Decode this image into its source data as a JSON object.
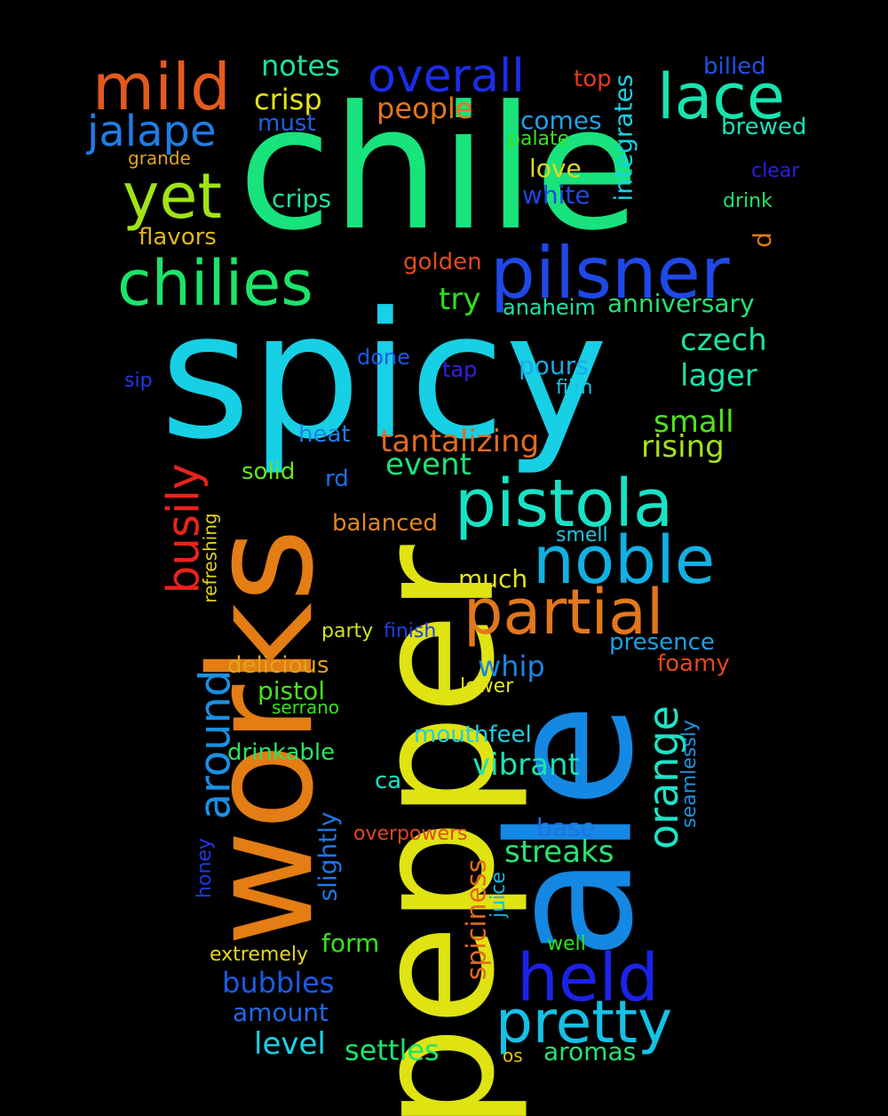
{
  "words": [
    {
      "key": "chile",
      "text": "chile",
      "color": "#18e37d"
    },
    {
      "key": "spicy",
      "text": "spicy",
      "color": "#17d0e5"
    },
    {
      "key": "pepper",
      "text": "pepper",
      "color": "#dfe311"
    },
    {
      "key": "ale",
      "text": "ale",
      "color": "#1488e3"
    },
    {
      "key": "works",
      "text": "works",
      "color": "#e37d14"
    },
    {
      "key": "pilsner",
      "text": "pilsner",
      "color": "#1f48e6"
    },
    {
      "key": "chilies",
      "text": "chilies",
      "color": "#1ce46a"
    },
    {
      "key": "pistola",
      "text": "pistola",
      "color": "#19e2c4"
    },
    {
      "key": "noble",
      "text": "noble",
      "color": "#12b0e3"
    },
    {
      "key": "partial",
      "text": "partial",
      "color": "#e3771c"
    },
    {
      "key": "held",
      "text": "held",
      "color": "#1c22e8"
    },
    {
      "key": "pretty",
      "text": "pretty",
      "color": "#15c1e6"
    },
    {
      "key": "mild",
      "text": "mild",
      "color": "#e35a1c"
    },
    {
      "key": "lace",
      "text": "lace",
      "color": "#19e3b0"
    },
    {
      "key": "yet",
      "text": "yet",
      "color": "#a1e314"
    },
    {
      "key": "overall",
      "text": "overall",
      "color": "#1c2ce8"
    },
    {
      "key": "jalape",
      "text": "jalape",
      "color": "#1f7ee6"
    },
    {
      "key": "busily",
      "text": "busily",
      "color": "#e8231c"
    },
    {
      "key": "around",
      "text": "around",
      "color": "#1a90e3"
    },
    {
      "key": "orange",
      "text": "orange",
      "color": "#1ee3c6"
    },
    {
      "key": "notes",
      "text": "notes",
      "color": "#1be39a"
    },
    {
      "key": "crisp",
      "text": "crisp",
      "color": "#e3e314"
    },
    {
      "key": "people",
      "text": "people",
      "color": "#e3771c"
    },
    {
      "key": "must",
      "text": "must",
      "color": "#2160e6"
    },
    {
      "key": "top",
      "text": "top",
      "color": "#e83a1c"
    },
    {
      "key": "billed",
      "text": "billed",
      "color": "#1f52e6"
    },
    {
      "key": "comes",
      "text": "comes",
      "color": "#1ea4e6"
    },
    {
      "key": "palate",
      "text": "palate",
      "color": "#38e31c"
    },
    {
      "key": "brewed",
      "text": "brewed",
      "color": "#16e3bc"
    },
    {
      "key": "integrates",
      "text": "integrates",
      "color": "#17d3e6"
    },
    {
      "key": "clear",
      "text": "clear",
      "color": "#2a1ce8"
    },
    {
      "key": "grande",
      "text": "grande",
      "color": "#e3a51c"
    },
    {
      "key": "love",
      "text": "love",
      "color": "#e3d81c"
    },
    {
      "key": "white",
      "text": "white",
      "color": "#1f46e6"
    },
    {
      "key": "drink",
      "text": "drink",
      "color": "#21e36a"
    },
    {
      "key": "crips",
      "text": "crips",
      "color": "#1ce3a0"
    },
    {
      "key": "flavors",
      "text": "flavors",
      "color": "#e3b61c"
    },
    {
      "key": "d",
      "text": "d",
      "color": "#e3771c"
    },
    {
      "key": "golden",
      "text": "golden",
      "color": "#e34a1c"
    },
    {
      "key": "try",
      "text": "try",
      "color": "#2ce31c"
    },
    {
      "key": "anaheim",
      "text": "anaheim",
      "color": "#19e3a8"
    },
    {
      "key": "anniversary",
      "text": "anniversary",
      "color": "#28e372"
    },
    {
      "key": "czech",
      "text": "czech",
      "color": "#19e3a2"
    },
    {
      "key": "done",
      "text": "done",
      "color": "#1c5ae8"
    },
    {
      "key": "tap",
      "text": "tap",
      "color": "#3a1ce8"
    },
    {
      "key": "pours",
      "text": "pours",
      "color": "#1ea8e6"
    },
    {
      "key": "lager",
      "text": "lager",
      "color": "#19e3ae"
    },
    {
      "key": "sip",
      "text": "sip",
      "color": "#1c3ae8"
    },
    {
      "key": "film",
      "text": "film",
      "color": "#18c6e3"
    },
    {
      "key": "heat",
      "text": "heat",
      "color": "#1f82e6"
    },
    {
      "key": "small",
      "text": "small",
      "color": "#4ee31c"
    },
    {
      "key": "tantalizing",
      "text": "tantalizing",
      "color": "#e36a1c"
    },
    {
      "key": "rising",
      "text": "rising",
      "color": "#a6e31c"
    },
    {
      "key": "solid",
      "text": "solid",
      "color": "#6ae31c"
    },
    {
      "key": "event",
      "text": "event",
      "color": "#1ce37a"
    },
    {
      "key": "rd",
      "text": "rd",
      "color": "#1c6ee8"
    },
    {
      "key": "balanced",
      "text": "balanced",
      "color": "#e3861c"
    },
    {
      "key": "refreshing",
      "text": "refreshing",
      "color": "#e3d21c"
    },
    {
      "key": "smell",
      "text": "smell",
      "color": "#1ec6e3"
    },
    {
      "key": "much",
      "text": "much",
      "color": "#e3e31c"
    },
    {
      "key": "party",
      "text": "party",
      "color": "#d0e31c"
    },
    {
      "key": "finish",
      "text": "finish",
      "color": "#1c40e8"
    },
    {
      "key": "presence",
      "text": "presence",
      "color": "#1ea0e6"
    },
    {
      "key": "delicious",
      "text": "delicious",
      "color": "#e3a31c"
    },
    {
      "key": "foamy",
      "text": "foamy",
      "color": "#e3481c"
    },
    {
      "key": "whip",
      "text": "whip",
      "color": "#1a86e3"
    },
    {
      "key": "pistol",
      "text": "pistol",
      "color": "#48e31c"
    },
    {
      "key": "lower",
      "text": "lower",
      "color": "#e3e31c"
    },
    {
      "key": "serrano",
      "text": "serrano",
      "color": "#38e31c"
    },
    {
      "key": "seamlessly",
      "text": "seamlessly",
      "color": "#1e92e6"
    },
    {
      "key": "mouthfeel",
      "text": "mouthfeel",
      "color": "#1ccfe3"
    },
    {
      "key": "drinkable",
      "text": "drinkable",
      "color": "#2ce35e"
    },
    {
      "key": "vibrant",
      "text": "vibrant",
      "color": "#19e3b4"
    },
    {
      "key": "ca",
      "text": "ca",
      "color": "#19e3c6"
    },
    {
      "key": "slightly",
      "text": "slightly",
      "color": "#1e78e6"
    },
    {
      "key": "overpowers",
      "text": "overpowers",
      "color": "#e3481c"
    },
    {
      "key": "base",
      "text": "base",
      "color": "#1f72e6"
    },
    {
      "key": "honey",
      "text": "honey",
      "color": "#1c3ae8"
    },
    {
      "key": "spiciness",
      "text": "spiciness",
      "color": "#e36a1c"
    },
    {
      "key": "streaks",
      "text": "streaks",
      "color": "#28e372"
    },
    {
      "key": "juice",
      "text": "juice",
      "color": "#19b6e3"
    },
    {
      "key": "form",
      "text": "form",
      "color": "#38e31c"
    },
    {
      "key": "well",
      "text": "well",
      "color": "#2ce31c"
    },
    {
      "key": "extremely",
      "text": "extremely",
      "color": "#e3d81c"
    },
    {
      "key": "bubbles",
      "text": "bubbles",
      "color": "#1f5ae6"
    },
    {
      "key": "amount",
      "text": "amount",
      "color": "#1f6ae6"
    },
    {
      "key": "level",
      "text": "level",
      "color": "#17d3e3"
    },
    {
      "key": "settles",
      "text": "settles",
      "color": "#1ce36e"
    },
    {
      "key": "os",
      "text": "os",
      "color": "#e3c41c"
    },
    {
      "key": "aromas",
      "text": "aromas",
      "color": "#28e372"
    }
  ]
}
